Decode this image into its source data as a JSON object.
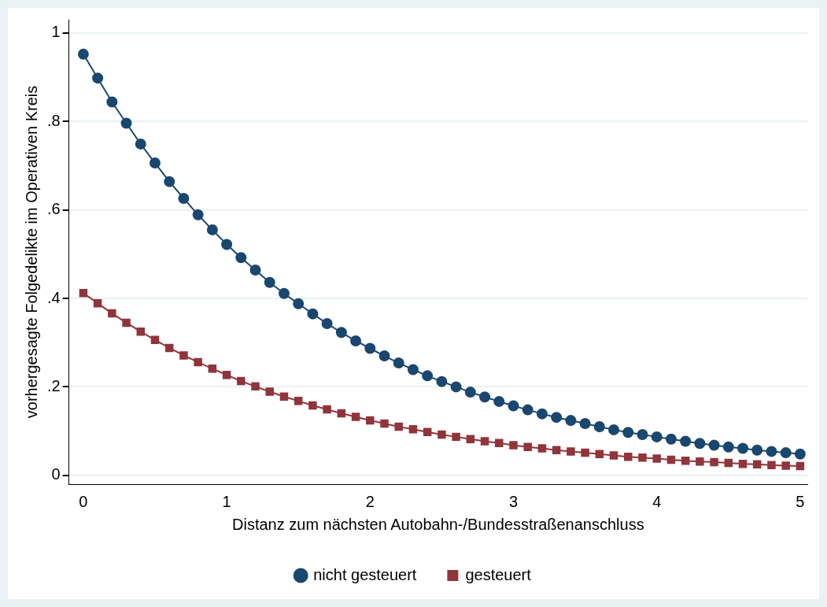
{
  "chart_data": {
    "type": "line",
    "xlabel": "Distanz zum nächsten Autobahn-/Bundesstraßenanschluss",
    "ylabel": "vorhergesagte Folgedelikte im Operativen Kreis",
    "x": [
      0,
      0.1,
      0.2,
      0.3,
      0.4,
      0.5,
      0.6,
      0.7,
      0.8,
      0.9,
      1,
      1.1,
      1.2,
      1.3,
      1.4,
      1.5,
      1.6,
      1.7,
      1.8,
      1.9,
      2,
      2.1,
      2.2,
      2.3,
      2.4,
      2.5,
      2.6,
      2.7,
      2.8,
      2.9,
      3,
      3.1,
      3.2,
      3.3,
      3.4,
      3.5,
      3.6,
      3.7,
      3.8,
      3.9,
      4,
      4.1,
      4.2,
      4.3,
      4.4,
      4.5,
      4.6,
      4.7,
      4.8,
      4.9,
      5
    ],
    "series": [
      {
        "name": "nicht gesteuert",
        "color": "#1a476f",
        "marker": "circle",
        "values": [
          0.952,
          0.898,
          0.844,
          0.796,
          0.749,
          0.706,
          0.664,
          0.626,
          0.589,
          0.555,
          0.522,
          0.492,
          0.464,
          0.436,
          0.411,
          0.388,
          0.365,
          0.343,
          0.323,
          0.304,
          0.287,
          0.27,
          0.254,
          0.239,
          0.225,
          0.212,
          0.2,
          0.188,
          0.177,
          0.167,
          0.157,
          0.148,
          0.139,
          0.131,
          0.124,
          0.117,
          0.11,
          0.103,
          0.097,
          0.092,
          0.087,
          0.082,
          0.077,
          0.072,
          0.068,
          0.064,
          0.061,
          0.057,
          0.054,
          0.051,
          0.048
        ]
      },
      {
        "name": "gesteuert",
        "color": "#90353b",
        "marker": "square",
        "values": [
          0.412,
          0.389,
          0.366,
          0.345,
          0.325,
          0.306,
          0.288,
          0.271,
          0.256,
          0.241,
          0.227,
          0.213,
          0.201,
          0.189,
          0.178,
          0.168,
          0.158,
          0.149,
          0.14,
          0.132,
          0.124,
          0.117,
          0.11,
          0.104,
          0.098,
          0.092,
          0.087,
          0.082,
          0.077,
          0.073,
          0.068,
          0.064,
          0.061,
          0.057,
          0.054,
          0.051,
          0.048,
          0.045,
          0.042,
          0.04,
          0.038,
          0.035,
          0.033,
          0.031,
          0.03,
          0.028,
          0.026,
          0.025,
          0.023,
          0.022,
          0.021
        ]
      }
    ],
    "xlim": [
      -0.1,
      5.05
    ],
    "xticks": [
      0,
      1,
      2,
      3,
      4,
      5
    ],
    "ylim": [
      -0.02,
      1.03
    ],
    "yticks": [
      0,
      {
        "value": 0.2,
        "label": ".2"
      },
      {
        "value": 0.4,
        "label": ".4"
      },
      {
        "value": 0.6,
        "label": ".6"
      },
      {
        "value": 0.8,
        "label": ".8"
      },
      1
    ],
    "grid": "y",
    "legend": "bottom",
    "line_style": "solid"
  }
}
